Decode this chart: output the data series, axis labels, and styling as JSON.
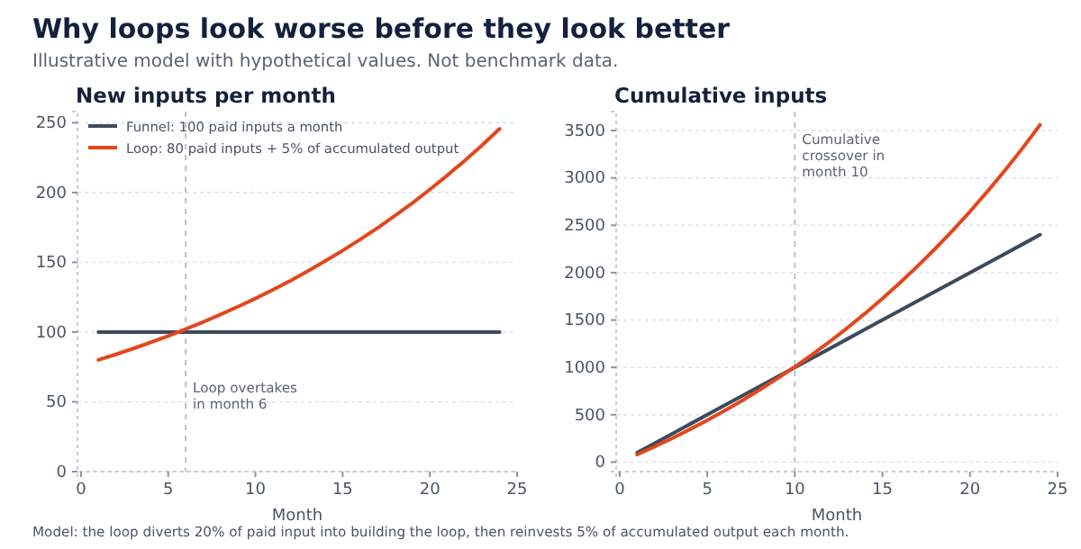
{
  "chart_data": [
    {
      "type": "other",
      "title": "Why loops look worse before they look better",
      "subtitle": "Illustrative model with hypothetical values. Not benchmark data.",
      "annotations": [
        "Model: the loop diverts 20% of paid input into building the loop, then reinvests 5% of accumulated output each month."
      ]
    },
    {
      "type": "line",
      "title": "New inputs per month",
      "xlabel": "Month",
      "x": [
        1,
        2,
        3,
        4,
        5,
        6,
        7,
        8,
        9,
        10,
        11,
        12,
        13,
        14,
        15,
        16,
        17,
        18,
        19,
        20,
        21,
        22,
        23,
        24
      ],
      "series": [
        {
          "name": "Funnel: 100 paid inputs a month",
          "color": "#3d4a5c",
          "values": [
            100,
            100,
            100,
            100,
            100,
            100,
            100,
            100,
            100,
            100,
            100,
            100,
            100,
            100,
            100,
            100,
            100,
            100,
            100,
            100,
            100,
            100,
            100,
            100
          ]
        },
        {
          "name": "Loop: 80 paid inputs + 5% of accumulated output",
          "color": "#e4461c",
          "values": [
            80,
            84,
            88.2,
            92.6,
            97.2,
            102.1,
            107.2,
            112.6,
            118.2,
            124.1,
            130.3,
            136.8,
            143.7,
            150.9,
            158.4,
            166.3,
            174.6,
            183.4,
            192.5,
            202.2,
            212.3,
            222.9,
            234.0,
            245.7
          ]
        }
      ],
      "xlim": [
        -0.2,
        25
      ],
      "xticks": [
        0,
        5,
        10,
        15,
        20,
        25
      ],
      "ylim": [
        0,
        258
      ],
      "yticks": [
        0,
        50,
        100,
        150,
        200,
        250
      ],
      "grid": "y",
      "legend": "top left",
      "ref_lines": [
        {
          "axis": "x",
          "value": 6,
          "label": "Loop overtakes\nin month 6",
          "color": "#b8c2d0",
          "line_style": "dashed"
        }
      ]
    },
    {
      "type": "line",
      "title": "Cumulative inputs",
      "xlabel": "Month",
      "x": [
        1,
        2,
        3,
        4,
        5,
        6,
        7,
        8,
        9,
        10,
        11,
        12,
        13,
        14,
        15,
        16,
        17,
        18,
        19,
        20,
        21,
        22,
        23,
        24
      ],
      "series": [
        {
          "color": "#3d4a5c",
          "values": [
            100,
            200,
            300,
            400,
            500,
            600,
            700,
            800,
            900,
            1000,
            1100,
            1200,
            1300,
            1400,
            1500,
            1600,
            1700,
            1800,
            1900,
            2000,
            2100,
            2200,
            2300,
            2400
          ]
        },
        {
          "color": "#e4461c",
          "values": [
            80,
            164,
            252,
            345,
            442,
            544,
            651,
            764,
            882,
            1006,
            1137,
            1273,
            1417,
            1568,
            1726,
            1893,
            2067,
            2251,
            2443,
            2645,
            2858,
            3080,
            3314,
            3560
          ]
        }
      ],
      "xlim": [
        -0.2,
        25
      ],
      "xticks": [
        0,
        5,
        10,
        15,
        20,
        25
      ],
      "ylim": [
        -100,
        3700
      ],
      "yticks": [
        0,
        500,
        1000,
        1500,
        2000,
        2500,
        3000,
        3500
      ],
      "grid": "y",
      "ref_lines": [
        {
          "axis": "x",
          "value": 10,
          "label": "Cumulative\ncrossover in\nmonth 10",
          "color": "#b8c2d0",
          "line_style": "dashed"
        }
      ]
    }
  ]
}
